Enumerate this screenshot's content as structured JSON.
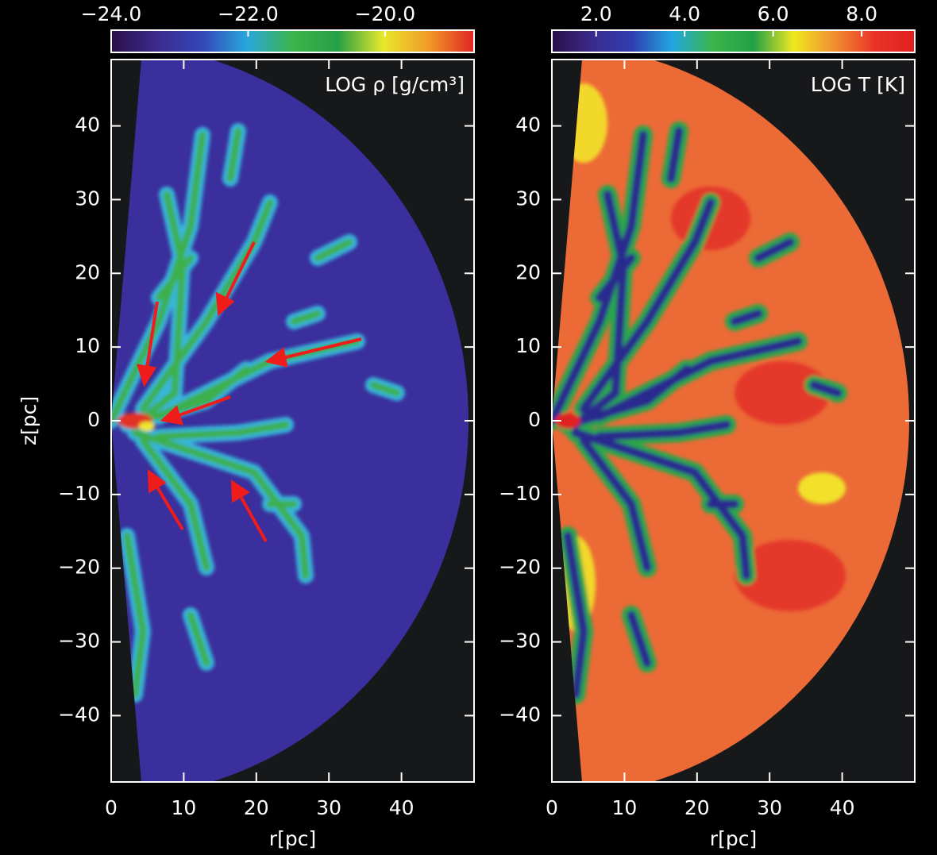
{
  "chart_data": [
    {
      "type": "image",
      "title": "LOG ρ [g/cm³]",
      "xlabel": "r[pc]",
      "ylabel": "z[pc]",
      "xlim": [
        0,
        50
      ],
      "ylim": [
        -49,
        49
      ],
      "xticks": [
        0,
        10,
        20,
        30,
        40
      ],
      "yticks": [
        {
          "value": -40,
          "label": "−40"
        },
        {
          "value": -30,
          "label": "−30"
        },
        {
          "value": -20,
          "label": "−20"
        },
        {
          "value": -10,
          "label": "−10"
        },
        0,
        10,
        20,
        30,
        40
      ],
      "colorbar": {
        "clim": [
          -24,
          -18.7
        ],
        "cticks": [
          {
            "value": -24,
            "label": "−24.0"
          },
          {
            "value": -22,
            "label": "−22.0"
          },
          {
            "value": -20,
            "label": "−20.0"
          }
        ],
        "colormap": [
          "#2a1048",
          "#3b2a8e",
          "#3346b8",
          "#2aa7dc",
          "#3cb54a",
          "#26a046",
          "#e8e82a",
          "#f09a28",
          "#e02424"
        ]
      }
    },
    {
      "type": "image",
      "title": "LOG T [K]",
      "xlabel": "r[pc]",
      "xlim": [
        0,
        50
      ],
      "ylim": [
        -49,
        49
      ],
      "xticks": [
        0,
        10,
        20,
        30,
        40
      ],
      "yticks": [
        {
          "value": -40,
          "label": "−40"
        },
        {
          "value": -30,
          "label": "−30"
        },
        {
          "value": -20,
          "label": "−20"
        },
        {
          "value": -10,
          "label": "−10"
        },
        0,
        10,
        20,
        30,
        40
      ],
      "colorbar": {
        "clim": [
          1,
          9.2
        ],
        "cticks": [
          {
            "value": 2,
            "label": "2.0"
          },
          {
            "value": 4,
            "label": "4.0"
          },
          {
            "value": 6,
            "label": "6.0"
          },
          {
            "value": 8,
            "label": "8.0"
          }
        ],
        "colormap": [
          "#2a1048",
          "#3a2a8c",
          "#2f3fb0",
          "#22a8e0",
          "#3cb54a",
          "#22a046",
          "#f0e820",
          "#f09030",
          "#e83428",
          "#e02020"
        ]
      }
    }
  ]
}
